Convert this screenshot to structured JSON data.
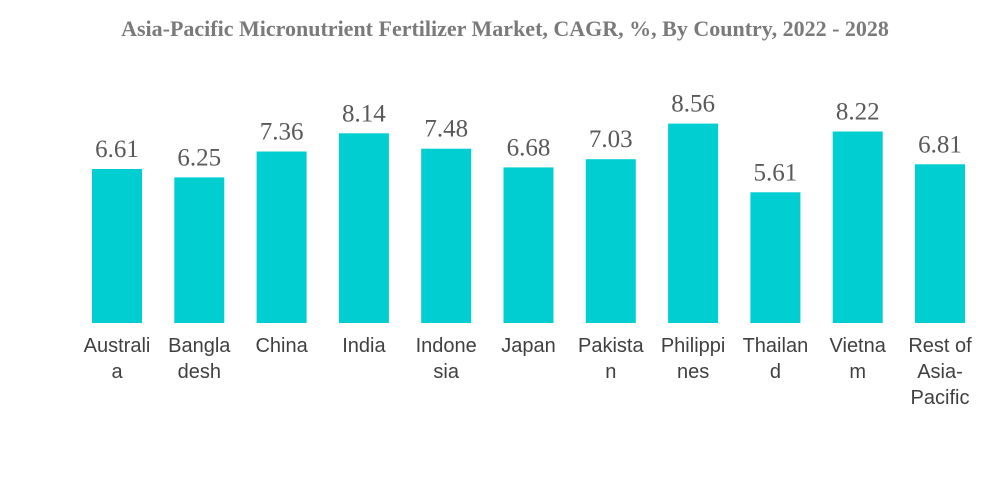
{
  "chart_data": {
    "type": "bar",
    "title": "Asia-Pacific Micronutrient Fertilizer Market, CAGR, %, By Country, 2022 - 2028",
    "categories": [
      "Australia",
      "Bangladesh",
      "China",
      "India",
      "Indonesia",
      "Japan",
      "Pakistan",
      "Philippines",
      "Thailand",
      "Vietnam",
      "Rest of Asia-Pacific"
    ],
    "category_label_lines": [
      [
        "Australi",
        "a"
      ],
      [
        "Bangla",
        "desh"
      ],
      [
        "China"
      ],
      [
        "India"
      ],
      [
        "Indone",
        "sia"
      ],
      [
        "Japan"
      ],
      [
        "Pakista",
        "n"
      ],
      [
        "Philippi",
        "nes"
      ],
      [
        "Thailan",
        "d"
      ],
      [
        "Vietna",
        "m"
      ],
      [
        "Rest of",
        "Asia-",
        "Pacific"
      ]
    ],
    "values": [
      6.61,
      6.25,
      7.36,
      8.14,
      7.48,
      6.68,
      7.03,
      8.56,
      5.61,
      8.22,
      6.81
    ],
    "value_labels": [
      "6.61",
      "6.25",
      "7.36",
      "8.14",
      "7.48",
      "6.68",
      "7.03",
      "8.56",
      "5.61",
      "8.22",
      "6.81"
    ],
    "xlabel": "",
    "ylabel": "",
    "ylim": [
      0,
      9.5
    ],
    "grid": false,
    "legend": "none",
    "colors": {
      "bar": "#00CED1",
      "title": "#7a7a7a",
      "value_label": "#595959",
      "category_label": "#404040"
    }
  }
}
